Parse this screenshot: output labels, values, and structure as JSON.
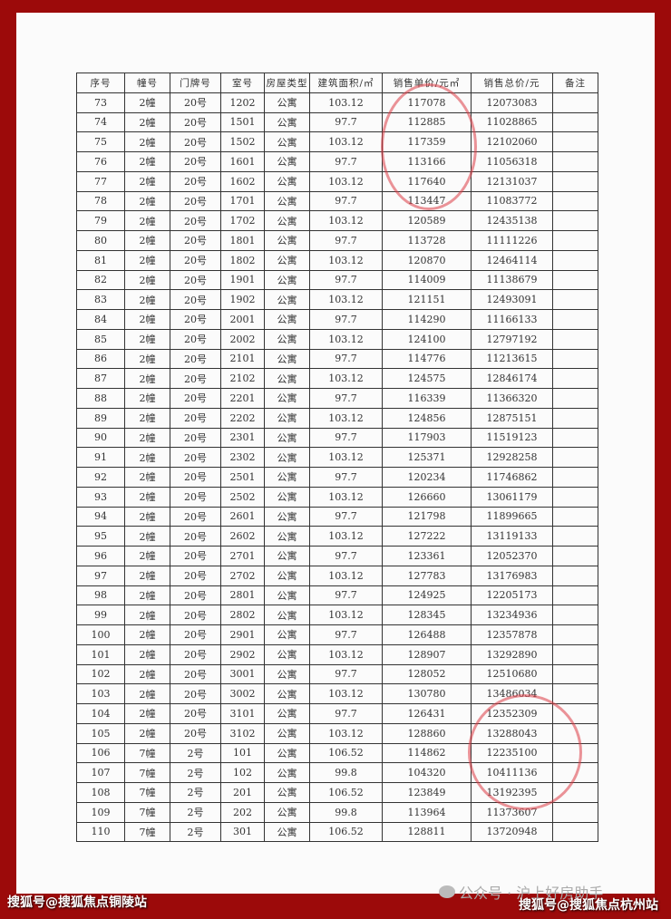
{
  "table": {
    "headers": [
      "序号",
      "幢号",
      "门牌号",
      "室号",
      "房屋类型",
      "建筑面积/㎡",
      "销售单价/元㎡",
      "销售总价/元",
      "备注"
    ],
    "rows": [
      [
        "73",
        "2幢",
        "20号",
        "1202",
        "公寓",
        "103.12",
        "117078",
        "12073083",
        ""
      ],
      [
        "74",
        "2幢",
        "20号",
        "1501",
        "公寓",
        "97.7",
        "112885",
        "11028865",
        ""
      ],
      [
        "75",
        "2幢",
        "20号",
        "1502",
        "公寓",
        "103.12",
        "117359",
        "12102060",
        ""
      ],
      [
        "76",
        "2幢",
        "20号",
        "1601",
        "公寓",
        "97.7",
        "113166",
        "11056318",
        ""
      ],
      [
        "77",
        "2幢",
        "20号",
        "1602",
        "公寓",
        "103.12",
        "117640",
        "12131037",
        ""
      ],
      [
        "78",
        "2幢",
        "20号",
        "1701",
        "公寓",
        "97.7",
        "113447",
        "11083772",
        ""
      ],
      [
        "79",
        "2幢",
        "20号",
        "1702",
        "公寓",
        "103.12",
        "120589",
        "12435138",
        ""
      ],
      [
        "80",
        "2幢",
        "20号",
        "1801",
        "公寓",
        "97.7",
        "113728",
        "11111226",
        ""
      ],
      [
        "81",
        "2幢",
        "20号",
        "1802",
        "公寓",
        "103.12",
        "120870",
        "12464114",
        ""
      ],
      [
        "82",
        "2幢",
        "20号",
        "1901",
        "公寓",
        "97.7",
        "114009",
        "11138679",
        ""
      ],
      [
        "83",
        "2幢",
        "20号",
        "1902",
        "公寓",
        "103.12",
        "121151",
        "12493091",
        ""
      ],
      [
        "84",
        "2幢",
        "20号",
        "2001",
        "公寓",
        "97.7",
        "114290",
        "11166133",
        ""
      ],
      [
        "85",
        "2幢",
        "20号",
        "2002",
        "公寓",
        "103.12",
        "124100",
        "12797192",
        ""
      ],
      [
        "86",
        "2幢",
        "20号",
        "2101",
        "公寓",
        "97.7",
        "114776",
        "11213615",
        ""
      ],
      [
        "87",
        "2幢",
        "20号",
        "2102",
        "公寓",
        "103.12",
        "124575",
        "12846174",
        ""
      ],
      [
        "88",
        "2幢",
        "20号",
        "2201",
        "公寓",
        "97.7",
        "116339",
        "11366320",
        ""
      ],
      [
        "89",
        "2幢",
        "20号",
        "2202",
        "公寓",
        "103.12",
        "124856",
        "12875151",
        ""
      ],
      [
        "90",
        "2幢",
        "20号",
        "2301",
        "公寓",
        "97.7",
        "117903",
        "11519123",
        ""
      ],
      [
        "91",
        "2幢",
        "20号",
        "2302",
        "公寓",
        "103.12",
        "125371",
        "12928258",
        ""
      ],
      [
        "92",
        "2幢",
        "20号",
        "2501",
        "公寓",
        "97.7",
        "120234",
        "11746862",
        ""
      ],
      [
        "93",
        "2幢",
        "20号",
        "2502",
        "公寓",
        "103.12",
        "126660",
        "13061179",
        ""
      ],
      [
        "94",
        "2幢",
        "20号",
        "2601",
        "公寓",
        "97.7",
        "121798",
        "11899665",
        ""
      ],
      [
        "95",
        "2幢",
        "20号",
        "2602",
        "公寓",
        "103.12",
        "127222",
        "13119133",
        ""
      ],
      [
        "96",
        "2幢",
        "20号",
        "2701",
        "公寓",
        "97.7",
        "123361",
        "12052370",
        ""
      ],
      [
        "97",
        "2幢",
        "20号",
        "2702",
        "公寓",
        "103.12",
        "127783",
        "13176983",
        ""
      ],
      [
        "98",
        "2幢",
        "20号",
        "2801",
        "公寓",
        "97.7",
        "124925",
        "12205173",
        ""
      ],
      [
        "99",
        "2幢",
        "20号",
        "2802",
        "公寓",
        "103.12",
        "128345",
        "13234936",
        ""
      ],
      [
        "100",
        "2幢",
        "20号",
        "2901",
        "公寓",
        "97.7",
        "126488",
        "12357878",
        ""
      ],
      [
        "101",
        "2幢",
        "20号",
        "2902",
        "公寓",
        "103.12",
        "128907",
        "13292890",
        ""
      ],
      [
        "102",
        "2幢",
        "20号",
        "3001",
        "公寓",
        "97.7",
        "128052",
        "12510680",
        ""
      ],
      [
        "103",
        "2幢",
        "20号",
        "3002",
        "公寓",
        "103.12",
        "130780",
        "13486034",
        ""
      ],
      [
        "104",
        "2幢",
        "20号",
        "3101",
        "公寓",
        "97.7",
        "126431",
        "12352309",
        ""
      ],
      [
        "105",
        "2幢",
        "20号",
        "3102",
        "公寓",
        "103.12",
        "128860",
        "13288043",
        ""
      ],
      [
        "106",
        "7幢",
        "2号",
        "101",
        "公寓",
        "106.52",
        "114862",
        "12235100",
        ""
      ],
      [
        "107",
        "7幢",
        "2号",
        "102",
        "公寓",
        "99.8",
        "104320",
        "10411136",
        ""
      ],
      [
        "108",
        "7幢",
        "2号",
        "201",
        "公寓",
        "106.52",
        "123849",
        "13192395",
        ""
      ],
      [
        "109",
        "7幢",
        "2号",
        "202",
        "公寓",
        "99.8",
        "113964",
        "11373607",
        ""
      ],
      [
        "110",
        "7幢",
        "2号",
        "301",
        "公寓",
        "106.52",
        "128811",
        "13720948",
        ""
      ]
    ]
  },
  "watermarks": {
    "left": "搜狐号@搜狐焦点铜陵站",
    "right": "搜狐号@搜狐焦点杭州站",
    "wechat": "公众号 · 沪上好房助手"
  },
  "colors": {
    "border": "#9c0a0a",
    "stamp": "#dc3c46"
  }
}
